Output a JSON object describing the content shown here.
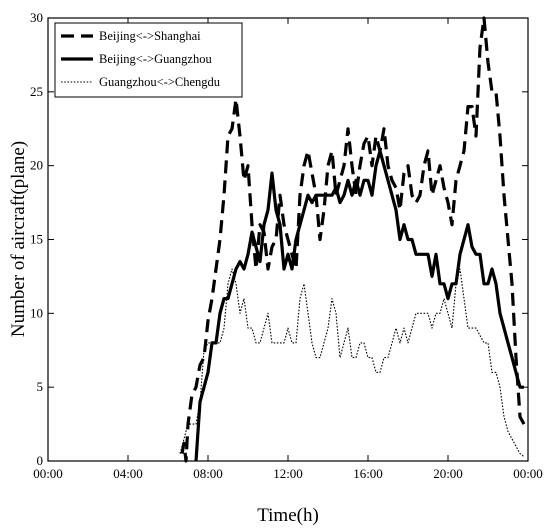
{
  "chart_data": {
    "type": "line",
    "title": "",
    "xlabel": "Time(h)",
    "ylabel": "Number of aircraft(plane)",
    "xlim": [
      0,
      24
    ],
    "ylim": [
      0,
      30
    ],
    "x_ticks": [
      0,
      4,
      8,
      12,
      16,
      20,
      24
    ],
    "x_tick_labels": [
      "00:00",
      "04:00",
      "08:00",
      "12:00",
      "16:00",
      "20:00",
      "00:00"
    ],
    "y_ticks": [
      0,
      5,
      10,
      15,
      20,
      25,
      30
    ],
    "y_tick_labels": [
      "0",
      "5",
      "10",
      "15",
      "20",
      "25",
      "30"
    ],
    "grid": false,
    "legend": {
      "position": "top-left"
    },
    "series": [
      {
        "name": "Beijing<->Shanghai",
        "style": "dashed",
        "color": "#000000",
        "x": [
          6.7,
          6.8,
          6.9,
          7.0,
          7.2,
          7.4,
          7.6,
          7.8,
          8.0,
          8.2,
          8.4,
          8.6,
          8.8,
          9.0,
          9.2,
          9.4,
          9.6,
          9.8,
          10.0,
          10.2,
          10.4,
          10.6,
          10.8,
          11.0,
          11.2,
          11.4,
          11.6,
          11.8,
          12.0,
          12.2,
          12.4,
          12.6,
          12.8,
          13.0,
          13.2,
          13.4,
          13.6,
          13.8,
          14.0,
          14.2,
          14.4,
          14.6,
          14.8,
          15.0,
          15.2,
          15.4,
          15.6,
          15.8,
          16.0,
          16.2,
          16.4,
          16.6,
          16.8,
          17.0,
          17.2,
          17.4,
          17.6,
          17.8,
          18.0,
          18.2,
          18.4,
          18.6,
          18.8,
          19.0,
          19.2,
          19.4,
          19.6,
          19.8,
          20.0,
          20.2,
          20.4,
          20.6,
          20.8,
          21.0,
          21.2,
          21.4,
          21.6,
          21.8,
          22.0,
          22.2,
          22.4,
          22.6,
          22.8,
          23.0,
          23.2,
          23.4,
          23.6,
          23.8
        ],
        "values": [
          0.5,
          1.2,
          0,
          2.5,
          4.5,
          5,
          6.5,
          7,
          9.5,
          11,
          13,
          15,
          18,
          22,
          22.5,
          24.5,
          22,
          19,
          20,
          16,
          13,
          16,
          15.5,
          13,
          14.5,
          15,
          18,
          16,
          15,
          14,
          13,
          18,
          20,
          21,
          19.5,
          18,
          15,
          17,
          20,
          21,
          18,
          19,
          20,
          22.5,
          20,
          18,
          20,
          21.5,
          22,
          20,
          22,
          21,
          22.5,
          20,
          19,
          18.5,
          17,
          19.5,
          20,
          18,
          17.5,
          18,
          20,
          21,
          18,
          19,
          20,
          18.5,
          17.5,
          16,
          19,
          20,
          21,
          24,
          24,
          22,
          28,
          30,
          27,
          25,
          25,
          22,
          18,
          15,
          12,
          7,
          3,
          2.5
        ]
      },
      {
        "name": "Beijing<->Guangzhou",
        "style": "solid-thick",
        "color": "#000000",
        "x": [
          7.4,
          7.6,
          7.8,
          8.0,
          8.2,
          8.4,
          8.6,
          8.8,
          9.0,
          9.2,
          9.4,
          9.6,
          9.8,
          10.0,
          10.2,
          10.4,
          10.6,
          10.8,
          11.0,
          11.2,
          11.4,
          11.6,
          11.8,
          12.0,
          12.2,
          12.4,
          12.6,
          12.8,
          13.0,
          13.2,
          13.4,
          13.6,
          13.8,
          14.0,
          14.2,
          14.4,
          14.6,
          14.8,
          15.0,
          15.2,
          15.4,
          15.6,
          15.8,
          16.0,
          16.2,
          16.4,
          16.6,
          16.8,
          17.0,
          17.2,
          17.4,
          17.6,
          17.8,
          18.0,
          18.2,
          18.4,
          18.6,
          18.8,
          19.0,
          19.2,
          19.4,
          19.6,
          19.8,
          20.0,
          20.2,
          20.4,
          20.6,
          20.8,
          21.0,
          21.2,
          21.4,
          21.6,
          21.8,
          22.0,
          22.2,
          22.4,
          22.6,
          22.8,
          23.0,
          23.2,
          23.4,
          23.6,
          23.8
        ],
        "values": [
          0,
          4,
          5,
          6,
          8,
          8,
          10,
          11,
          11,
          12,
          13,
          13.5,
          13,
          14,
          15.5,
          14.5,
          13.5,
          16,
          17,
          19.5,
          17,
          16,
          13,
          14,
          13,
          15,
          16,
          17,
          18,
          17.5,
          18,
          18,
          18,
          18,
          18,
          18.5,
          17.5,
          18,
          19,
          18,
          19,
          18,
          19,
          19,
          18,
          20,
          21,
          20,
          19,
          18,
          17,
          15,
          16,
          15,
          15,
          14,
          14,
          14,
          14,
          12.5,
          14,
          12,
          12,
          11,
          12,
          12,
          14,
          15,
          16,
          14.5,
          14,
          14,
          12,
          12,
          13,
          12,
          10,
          9,
          8,
          7,
          6,
          5,
          5
        ]
      },
      {
        "name": "Guangzhou<->Chengdu",
        "style": "dotted",
        "color": "#000000",
        "x": [
          6.6,
          6.8,
          7.0,
          7.2,
          7.4,
          7.6,
          7.8,
          8.0,
          8.2,
          8.4,
          8.6,
          8.8,
          9.0,
          9.2,
          9.4,
          9.6,
          9.8,
          10.0,
          10.2,
          10.4,
          10.6,
          10.8,
          11.0,
          11.2,
          11.4,
          11.6,
          11.8,
          12.0,
          12.2,
          12.4,
          12.6,
          12.8,
          13.0,
          13.2,
          13.4,
          13.6,
          13.8,
          14.0,
          14.2,
          14.4,
          14.6,
          14.8,
          15.0,
          15.2,
          15.4,
          15.6,
          15.8,
          16.0,
          16.2,
          16.4,
          16.6,
          16.8,
          17.0,
          17.2,
          17.4,
          17.6,
          17.8,
          18.0,
          18.2,
          18.4,
          18.6,
          18.8,
          19.0,
          19.2,
          19.4,
          19.6,
          19.8,
          20.0,
          20.2,
          20.4,
          20.6,
          20.8,
          21.0,
          21.2,
          21.4,
          21.6,
          21.8,
          22.0,
          22.2,
          22.4,
          22.6,
          22.8,
          23.0,
          23.2,
          23.4,
          23.6,
          23.8
        ],
        "values": [
          0.5,
          1.5,
          2.5,
          2.5,
          2.5,
          4,
          7.5,
          8,
          8,
          8,
          8,
          9,
          12,
          13,
          12,
          10,
          11,
          9,
          9,
          8,
          8,
          9,
          10,
          8,
          8,
          8,
          8,
          9,
          8,
          8,
          11,
          12,
          10,
          8,
          7,
          7,
          8,
          9,
          11,
          10,
          7,
          8,
          9,
          7,
          7,
          8,
          8,
          7,
          7,
          6,
          6,
          7,
          7,
          8,
          9,
          8,
          9,
          8,
          9,
          10,
          10,
          10,
          10,
          9,
          10,
          10,
          11,
          10,
          9,
          12,
          13,
          11,
          9,
          9,
          9,
          8.5,
          8,
          8,
          6,
          6,
          5,
          3,
          2,
          1.5,
          1,
          0.5,
          0.3
        ]
      }
    ]
  }
}
